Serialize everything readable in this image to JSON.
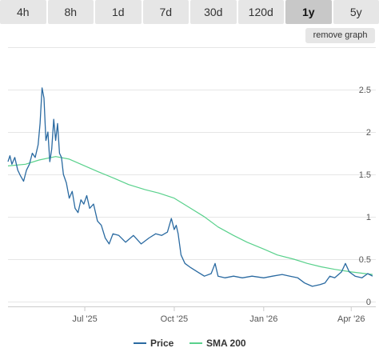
{
  "tabs": [
    {
      "label": "4h",
      "active": false
    },
    {
      "label": "8h",
      "active": false
    },
    {
      "label": "1d",
      "active": false
    },
    {
      "label": "7d",
      "active": false
    },
    {
      "label": "30d",
      "active": false
    },
    {
      "label": "120d",
      "active": false
    },
    {
      "label": "1y",
      "active": true
    },
    {
      "label": "5y",
      "active": false
    }
  ],
  "remove_graph_label": "remove graph",
  "colors": {
    "price": "#2a6aa1",
    "sma": "#59d18c",
    "grid": "#e6e6e6",
    "tab_bg": "#e6e6e6",
    "tab_active_bg": "#c8c8c8"
  },
  "chart_data": {
    "type": "line",
    "x_ticks": [
      "Jul '25",
      "Oct '25",
      "Jan '26",
      "Apr '26"
    ],
    "y_ticks": [
      "0",
      "0.5",
      "1",
      "1.5",
      "2",
      "2.5"
    ],
    "ylim": [
      0,
      2.5
    ],
    "grid": true,
    "legend_position": "bottom-center",
    "series": [
      {
        "name": "Price",
        "key": "price",
        "points": [
          [
            "2025-04-13",
            1.65
          ],
          [
            "2025-04-15",
            1.72
          ],
          [
            "2025-04-17",
            1.62
          ],
          [
            "2025-04-20",
            1.7
          ],
          [
            "2025-04-23",
            1.55
          ],
          [
            "2025-04-26",
            1.48
          ],
          [
            "2025-04-29",
            1.42
          ],
          [
            "2025-05-02",
            1.55
          ],
          [
            "2025-05-05",
            1.62
          ],
          [
            "2025-05-08",
            1.75
          ],
          [
            "2025-05-11",
            1.7
          ],
          [
            "2025-05-14",
            1.85
          ],
          [
            "2025-05-16",
            2.1
          ],
          [
            "2025-05-18",
            2.52
          ],
          [
            "2025-05-20",
            2.4
          ],
          [
            "2025-05-22",
            1.9
          ],
          [
            "2025-05-24",
            2.0
          ],
          [
            "2025-05-26",
            1.65
          ],
          [
            "2025-05-28",
            1.8
          ],
          [
            "2025-05-30",
            2.15
          ],
          [
            "2025-06-01",
            1.9
          ],
          [
            "2025-06-03",
            2.1
          ],
          [
            "2025-06-05",
            1.75
          ],
          [
            "2025-06-07",
            1.7
          ],
          [
            "2025-06-09",
            1.5
          ],
          [
            "2025-06-12",
            1.4
          ],
          [
            "2025-06-15",
            1.22
          ],
          [
            "2025-06-18",
            1.3
          ],
          [
            "2025-06-21",
            1.1
          ],
          [
            "2025-06-24",
            1.05
          ],
          [
            "2025-06-27",
            1.2
          ],
          [
            "2025-06-30",
            1.15
          ],
          [
            "2025-07-03",
            1.25
          ],
          [
            "2025-07-06",
            1.1
          ],
          [
            "2025-07-10",
            1.15
          ],
          [
            "2025-07-14",
            0.95
          ],
          [
            "2025-07-18",
            0.9
          ],
          [
            "2025-07-22",
            0.75
          ],
          [
            "2025-07-26",
            0.68
          ],
          [
            "2025-07-30",
            0.8
          ],
          [
            "2025-08-05",
            0.78
          ],
          [
            "2025-08-12",
            0.7
          ],
          [
            "2025-08-20",
            0.78
          ],
          [
            "2025-08-28",
            0.68
          ],
          [
            "2025-09-05",
            0.75
          ],
          [
            "2025-09-12",
            0.8
          ],
          [
            "2025-09-18",
            0.78
          ],
          [
            "2025-09-24",
            0.82
          ],
          [
            "2025-09-28",
            0.98
          ],
          [
            "2025-10-01",
            0.85
          ],
          [
            "2025-10-03",
            0.9
          ],
          [
            "2025-10-05",
            0.8
          ],
          [
            "2025-10-08",
            0.55
          ],
          [
            "2025-10-12",
            0.45
          ],
          [
            "2025-10-18",
            0.4
          ],
          [
            "2025-10-25",
            0.35
          ],
          [
            "2025-11-01",
            0.3
          ],
          [
            "2025-11-08",
            0.33
          ],
          [
            "2025-11-12",
            0.45
          ],
          [
            "2025-11-15",
            0.3
          ],
          [
            "2025-11-22",
            0.28
          ],
          [
            "2025-12-01",
            0.3
          ],
          [
            "2025-12-10",
            0.28
          ],
          [
            "2025-12-20",
            0.3
          ],
          [
            "2026-01-01",
            0.28
          ],
          [
            "2026-01-10",
            0.3
          ],
          [
            "2026-01-20",
            0.32
          ],
          [
            "2026-01-28",
            0.3
          ],
          [
            "2026-02-05",
            0.28
          ],
          [
            "2026-02-12",
            0.22
          ],
          [
            "2026-02-20",
            0.18
          ],
          [
            "2026-02-28",
            0.2
          ],
          [
            "2026-03-05",
            0.22
          ],
          [
            "2026-03-10",
            0.3
          ],
          [
            "2026-03-15",
            0.28
          ],
          [
            "2026-03-22",
            0.35
          ],
          [
            "2026-03-26",
            0.45
          ],
          [
            "2026-03-30",
            0.35
          ],
          [
            "2026-04-05",
            0.3
          ],
          [
            "2026-04-12",
            0.28
          ],
          [
            "2026-04-18",
            0.33
          ],
          [
            "2026-04-23",
            0.3
          ]
        ]
      },
      {
        "name": "SMA 200",
        "key": "sma",
        "points": [
          [
            "2025-04-13",
            1.6
          ],
          [
            "2025-05-01",
            1.62
          ],
          [
            "2025-05-15",
            1.67
          ],
          [
            "2025-06-01",
            1.71
          ],
          [
            "2025-06-15",
            1.68
          ],
          [
            "2025-07-01",
            1.6
          ],
          [
            "2025-07-15",
            1.53
          ],
          [
            "2025-08-01",
            1.45
          ],
          [
            "2025-08-15",
            1.38
          ],
          [
            "2025-09-01",
            1.32
          ],
          [
            "2025-09-15",
            1.28
          ],
          [
            "2025-10-01",
            1.22
          ],
          [
            "2025-10-15",
            1.12
          ],
          [
            "2025-11-01",
            1.0
          ],
          [
            "2025-11-15",
            0.88
          ],
          [
            "2025-12-01",
            0.78
          ],
          [
            "2025-12-15",
            0.7
          ],
          [
            "2026-01-01",
            0.62
          ],
          [
            "2026-01-15",
            0.55
          ],
          [
            "2026-02-01",
            0.5
          ],
          [
            "2026-02-15",
            0.45
          ],
          [
            "2026-03-01",
            0.41
          ],
          [
            "2026-03-15",
            0.38
          ],
          [
            "2026-04-01",
            0.35
          ],
          [
            "2026-04-23",
            0.32
          ]
        ]
      }
    ]
  }
}
